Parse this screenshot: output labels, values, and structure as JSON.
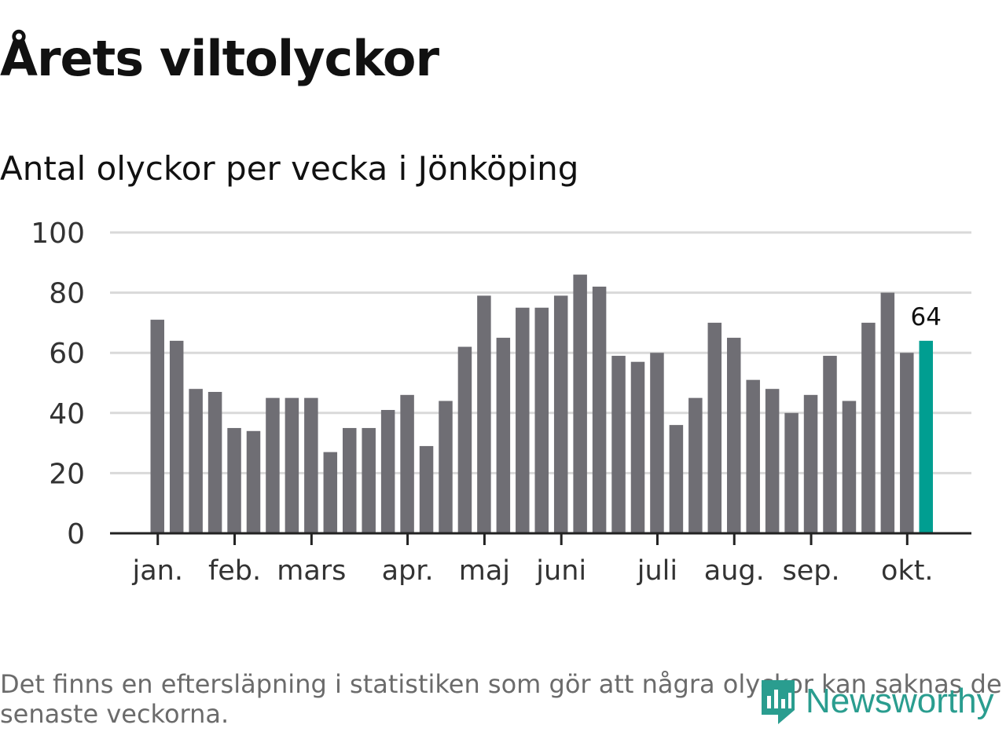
{
  "title": "Årets viltolyckor",
  "subtitle": "Antal olyckor per vecka i Jönköping",
  "footnote_line1": "Det finns en eftersläpning i statistiken som gör att några olyckor kan saknas de",
  "footnote_line2": "senaste veckorna.",
  "logo_text": "Newsworthy",
  "colors": {
    "bar": "#6f6e74",
    "highlight": "#009e91",
    "grid": "#d9d9d9",
    "axis": "#222222",
    "tick_label": "#333333",
    "logo": "#2a9d8f"
  },
  "chart_data": {
    "type": "bar",
    "title": "Antal olyckor per vecka i Jönköping",
    "xlabel": "",
    "ylabel": "",
    "ylim": [
      0,
      100
    ],
    "yticks": [
      0,
      20,
      40,
      60,
      80,
      100
    ],
    "grid": true,
    "values": [
      71,
      64,
      48,
      47,
      35,
      34,
      45,
      45,
      45,
      27,
      35,
      35,
      41,
      46,
      29,
      44,
      62,
      79,
      65,
      75,
      75,
      79,
      86,
      82,
      59,
      57,
      60,
      36,
      45,
      70,
      65,
      51,
      48,
      40,
      46,
      59,
      44,
      70,
      80,
      60,
      64
    ],
    "highlight_index": 40,
    "highlight_label": "64",
    "month_labels": [
      {
        "label": "jan.",
        "bar_index": 0.5
      },
      {
        "label": "feb.",
        "bar_index": 4.5
      },
      {
        "label": "mars",
        "bar_index": 8.5
      },
      {
        "label": "apr.",
        "bar_index": 13.5
      },
      {
        "label": "maj",
        "bar_index": 17.5
      },
      {
        "label": "juni",
        "bar_index": 21.5
      },
      {
        "label": "juli",
        "bar_index": 26.5
      },
      {
        "label": "aug.",
        "bar_index": 30.5
      },
      {
        "label": "sep.",
        "bar_index": 34.5
      },
      {
        "label": "okt.",
        "bar_index": 39.5
      }
    ]
  }
}
